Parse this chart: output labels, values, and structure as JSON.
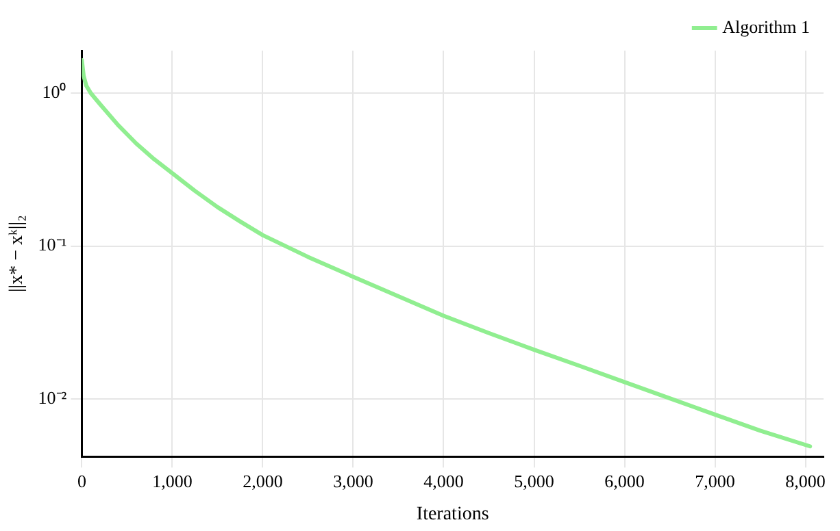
{
  "chart_data": {
    "type": "line",
    "xlabel": "Iterations",
    "ylabel": "||x* − xᵏ||₂",
    "x": [
      0,
      20,
      50,
      100,
      200,
      400,
      600,
      800,
      1000,
      1250,
      1500,
      1750,
      2000,
      2500,
      3000,
      3500,
      4000,
      4500,
      5000,
      5500,
      6000,
      6500,
      7000,
      7500,
      8050
    ],
    "series": [
      {
        "name": "Algorithm 1",
        "color": "#90ee90",
        "values": [
          1.65,
          1.3,
          1.12,
          1.0,
          0.85,
          0.62,
          0.47,
          0.37,
          0.3,
          0.23,
          0.18,
          0.145,
          0.118,
          0.085,
          0.063,
          0.047,
          0.035,
          0.027,
          0.021,
          0.0165,
          0.0129,
          0.0101,
          0.0079,
          0.0062,
          0.0049
        ]
      }
    ],
    "xlim": [
      0,
      8200
    ],
    "ylim": [
      0.0042,
      1.9
    ],
    "xticks": [
      0,
      {
        "value": 1000,
        "label": "1,000"
      },
      {
        "value": 2000,
        "label": "2,000"
      },
      {
        "value": 3000,
        "label": "3,000"
      },
      {
        "value": 4000,
        "label": "4,000"
      },
      {
        "value": 5000,
        "label": "5,000"
      },
      {
        "value": 6000,
        "label": "6,000"
      },
      {
        "value": 7000,
        "label": "7,000"
      },
      {
        "value": 8000,
        "label": "8,000"
      }
    ],
    "yticks": [
      {
        "value": 1,
        "label": "10⁰"
      },
      {
        "value": 0.1,
        "label": "10⁻¹"
      },
      {
        "value": 0.01,
        "label": "10⁻²"
      }
    ],
    "log": "y",
    "grid": true,
    "legend": "top right",
    "marker": "none",
    "line_style": "solid"
  }
}
